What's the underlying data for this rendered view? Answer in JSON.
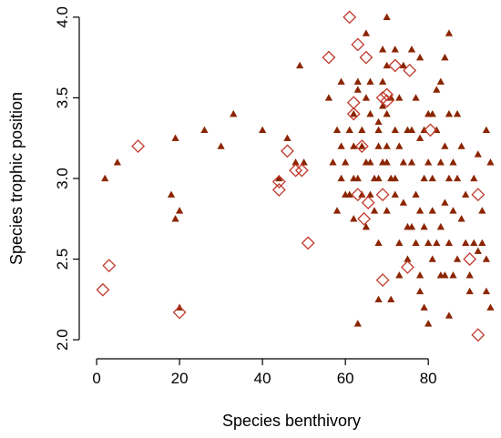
{
  "chart_data": {
    "type": "scatter",
    "xlabel": "Species benthivory",
    "ylabel": "Species trophic position",
    "xlim": [
      -2,
      96
    ],
    "ylim": [
      1.95,
      4.05
    ],
    "x_ticks": [
      0,
      20,
      40,
      60,
      80
    ],
    "y_ticks": [
      2.0,
      2.5,
      3.0,
      3.5,
      4.0
    ],
    "grid": false,
    "colors": {
      "triangle": "#8B2500",
      "diamond": "#C0392B"
    },
    "series": [
      {
        "marker": "triangle",
        "points": [
          [
            2,
            3.0
          ],
          [
            5,
            3.1
          ],
          [
            19,
            3.25
          ],
          [
            18,
            2.9
          ],
          [
            19,
            2.75
          ],
          [
            20,
            2.8
          ],
          [
            20,
            2.2
          ],
          [
            26,
            3.3
          ],
          [
            30,
            3.2
          ],
          [
            33,
            3.4
          ],
          [
            40,
            3.3
          ],
          [
            44,
            3.0
          ],
          [
            46,
            3.25
          ],
          [
            48,
            3.1
          ],
          [
            49,
            3.7
          ],
          [
            50,
            3.1
          ],
          [
            56,
            3.5
          ],
          [
            57,
            3.1
          ],
          [
            58,
            3.3
          ],
          [
            58,
            2.8
          ],
          [
            59,
            3.0
          ],
          [
            59,
            3.6
          ],
          [
            59,
            3.2
          ],
          [
            60,
            2.9
          ],
          [
            60,
            3.1
          ],
          [
            61,
            3.3
          ],
          [
            61,
            2.9
          ],
          [
            62,
            2.75
          ],
          [
            62,
            3.0
          ],
          [
            62,
            3.2
          ],
          [
            62,
            3.4
          ],
          [
            63,
            3.55
          ],
          [
            63,
            3.6
          ],
          [
            63,
            3.0
          ],
          [
            63,
            2.1
          ],
          [
            64,
            3.3
          ],
          [
            64,
            2.9
          ],
          [
            64,
            3.2
          ],
          [
            65,
            3.9
          ],
          [
            65,
            3.5
          ],
          [
            65,
            3.1
          ],
          [
            65,
            2.7
          ],
          [
            66,
            3.6
          ],
          [
            66,
            3.4
          ],
          [
            66,
            3.1
          ],
          [
            66,
            2.9
          ],
          [
            67,
            3.0
          ],
          [
            67,
            2.8
          ],
          [
            68,
            3.35
          ],
          [
            68,
            3.3
          ],
          [
            68,
            3.2
          ],
          [
            68,
            3.0
          ],
          [
            68,
            2.6
          ],
          [
            68,
            2.25
          ],
          [
            69,
            3.8
          ],
          [
            69,
            3.6
          ],
          [
            69,
            3.45
          ],
          [
            69,
            3.1
          ],
          [
            70,
            4.0
          ],
          [
            70,
            3.7
          ],
          [
            70,
            3.4
          ],
          [
            70,
            3.2
          ],
          [
            70,
            3.1
          ],
          [
            70,
            2.8
          ],
          [
            71,
            3.5
          ],
          [
            71,
            3.0
          ],
          [
            71,
            2.25
          ],
          [
            72,
            3.8
          ],
          [
            72,
            3.3
          ],
          [
            72,
            3.0
          ],
          [
            72,
            2.9
          ],
          [
            73,
            3.5
          ],
          [
            73,
            3.2
          ],
          [
            73,
            2.6
          ],
          [
            73,
            2.4
          ],
          [
            74,
            3.7
          ],
          [
            74,
            3.1
          ],
          [
            74,
            2.85
          ],
          [
            75,
            3.3
          ],
          [
            75,
            2.7
          ],
          [
            75,
            2.5
          ],
          [
            76,
            3.8
          ],
          [
            76,
            3.3
          ],
          [
            76,
            3.1
          ],
          [
            76,
            2.7
          ],
          [
            77,
            3.5
          ],
          [
            77,
            2.9
          ],
          [
            77,
            2.6
          ],
          [
            78,
            3.75
          ],
          [
            78,
            3.25
          ],
          [
            78,
            2.8
          ],
          [
            78,
            2.4
          ],
          [
            78,
            2.3
          ],
          [
            79,
            3.3
          ],
          [
            79,
            3.0
          ],
          [
            79,
            2.7
          ],
          [
            79,
            2.2
          ],
          [
            80,
            3.4
          ],
          [
            80,
            3.1
          ],
          [
            80,
            2.6
          ],
          [
            80,
            2.1
          ],
          [
            81,
            3.4
          ],
          [
            81,
            3.0
          ],
          [
            81,
            2.8
          ],
          [
            81,
            2.5
          ],
          [
            82,
            3.55
          ],
          [
            82,
            3.3
          ],
          [
            82,
            2.6
          ],
          [
            83,
            3.6
          ],
          [
            83,
            3.1
          ],
          [
            83,
            2.7
          ],
          [
            83,
            2.4
          ],
          [
            84,
            3.75
          ],
          [
            84,
            3.2
          ],
          [
            84,
            2.85
          ],
          [
            84,
            2.4
          ],
          [
            85,
            3.9
          ],
          [
            85,
            3.4
          ],
          [
            85,
            3.0
          ],
          [
            85,
            2.6
          ],
          [
            85,
            2.15
          ],
          [
            86,
            3.1
          ],
          [
            86,
            2.8
          ],
          [
            86,
            2.4
          ],
          [
            87,
            3.4
          ],
          [
            87,
            3.0
          ],
          [
            87,
            2.5
          ],
          [
            88,
            3.2
          ],
          [
            88,
            2.75
          ],
          [
            89,
            2.9
          ],
          [
            89,
            2.6
          ],
          [
            90,
            2.4
          ],
          [
            90,
            2.3
          ],
          [
            91,
            3.0
          ],
          [
            91,
            2.6
          ],
          [
            92,
            3.15
          ],
          [
            92,
            2.55
          ],
          [
            93,
            2.8
          ],
          [
            93,
            2.6
          ],
          [
            94,
            3.3
          ],
          [
            94,
            2.5
          ],
          [
            94,
            2.3
          ],
          [
            95,
            3.1
          ],
          [
            95,
            2.2
          ]
        ]
      },
      {
        "marker": "diamond",
        "points": [
          [
            1.5,
            2.31
          ],
          [
            3,
            2.46
          ],
          [
            10,
            3.2
          ],
          [
            20,
            2.17
          ],
          [
            44,
            2.98
          ],
          [
            44,
            2.93
          ],
          [
            46,
            3.17
          ],
          [
            48,
            3.05
          ],
          [
            49.5,
            3.05
          ],
          [
            51,
            2.6
          ],
          [
            56,
            3.75
          ],
          [
            61,
            4.0
          ],
          [
            62,
            3.47
          ],
          [
            62,
            3.4
          ],
          [
            63,
            3.83
          ],
          [
            63,
            2.9
          ],
          [
            64,
            3.2
          ],
          [
            64.5,
            2.75
          ],
          [
            65,
            3.75
          ],
          [
            65.5,
            2.85
          ],
          [
            69,
            3.5
          ],
          [
            69,
            2.9
          ],
          [
            69,
            2.37
          ],
          [
            70,
            3.48
          ],
          [
            70,
            3.52
          ],
          [
            72,
            3.7
          ],
          [
            75,
            2.45
          ],
          [
            75.5,
            3.67
          ],
          [
            80.5,
            3.3
          ],
          [
            90,
            2.5
          ],
          [
            92,
            2.9
          ],
          [
            92,
            2.03
          ]
        ]
      }
    ]
  }
}
